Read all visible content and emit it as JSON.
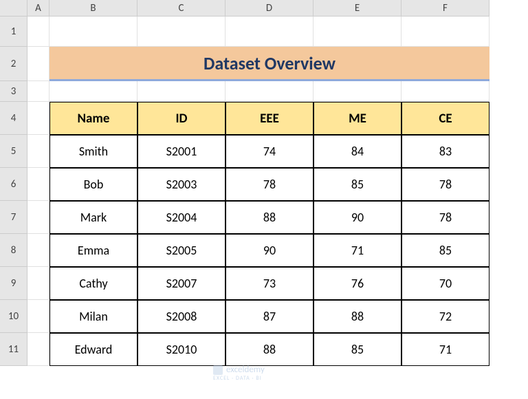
{
  "columns": [
    "",
    "A",
    "B",
    "C",
    "D",
    "E",
    "F"
  ],
  "row_count": 11,
  "title": "Dataset Overview",
  "title_bg": "#f4c89c",
  "title_underline": "#8ea9db",
  "title_color": "#203864",
  "header_bg": "#ffe699",
  "headers": [
    "Name",
    "ID",
    "EEE",
    "ME",
    "CE"
  ],
  "rows": [
    [
      "Smith",
      "S2001",
      "74",
      "84",
      "83"
    ],
    [
      "Bob",
      "S2003",
      "78",
      "85",
      "78"
    ],
    [
      "Mark",
      "S2004",
      "88",
      "90",
      "78"
    ],
    [
      "Emma",
      "S2005",
      "90",
      "71",
      "85"
    ],
    [
      "Cathy",
      "S2007",
      "73",
      "76",
      "70"
    ],
    [
      "Milan",
      "S2008",
      "87",
      "88",
      "72"
    ],
    [
      "Edward",
      "S2010",
      "88",
      "85",
      "71"
    ]
  ],
  "watermark": "exceldemy",
  "watermark_sub": "EXCEL · DATA · BI"
}
